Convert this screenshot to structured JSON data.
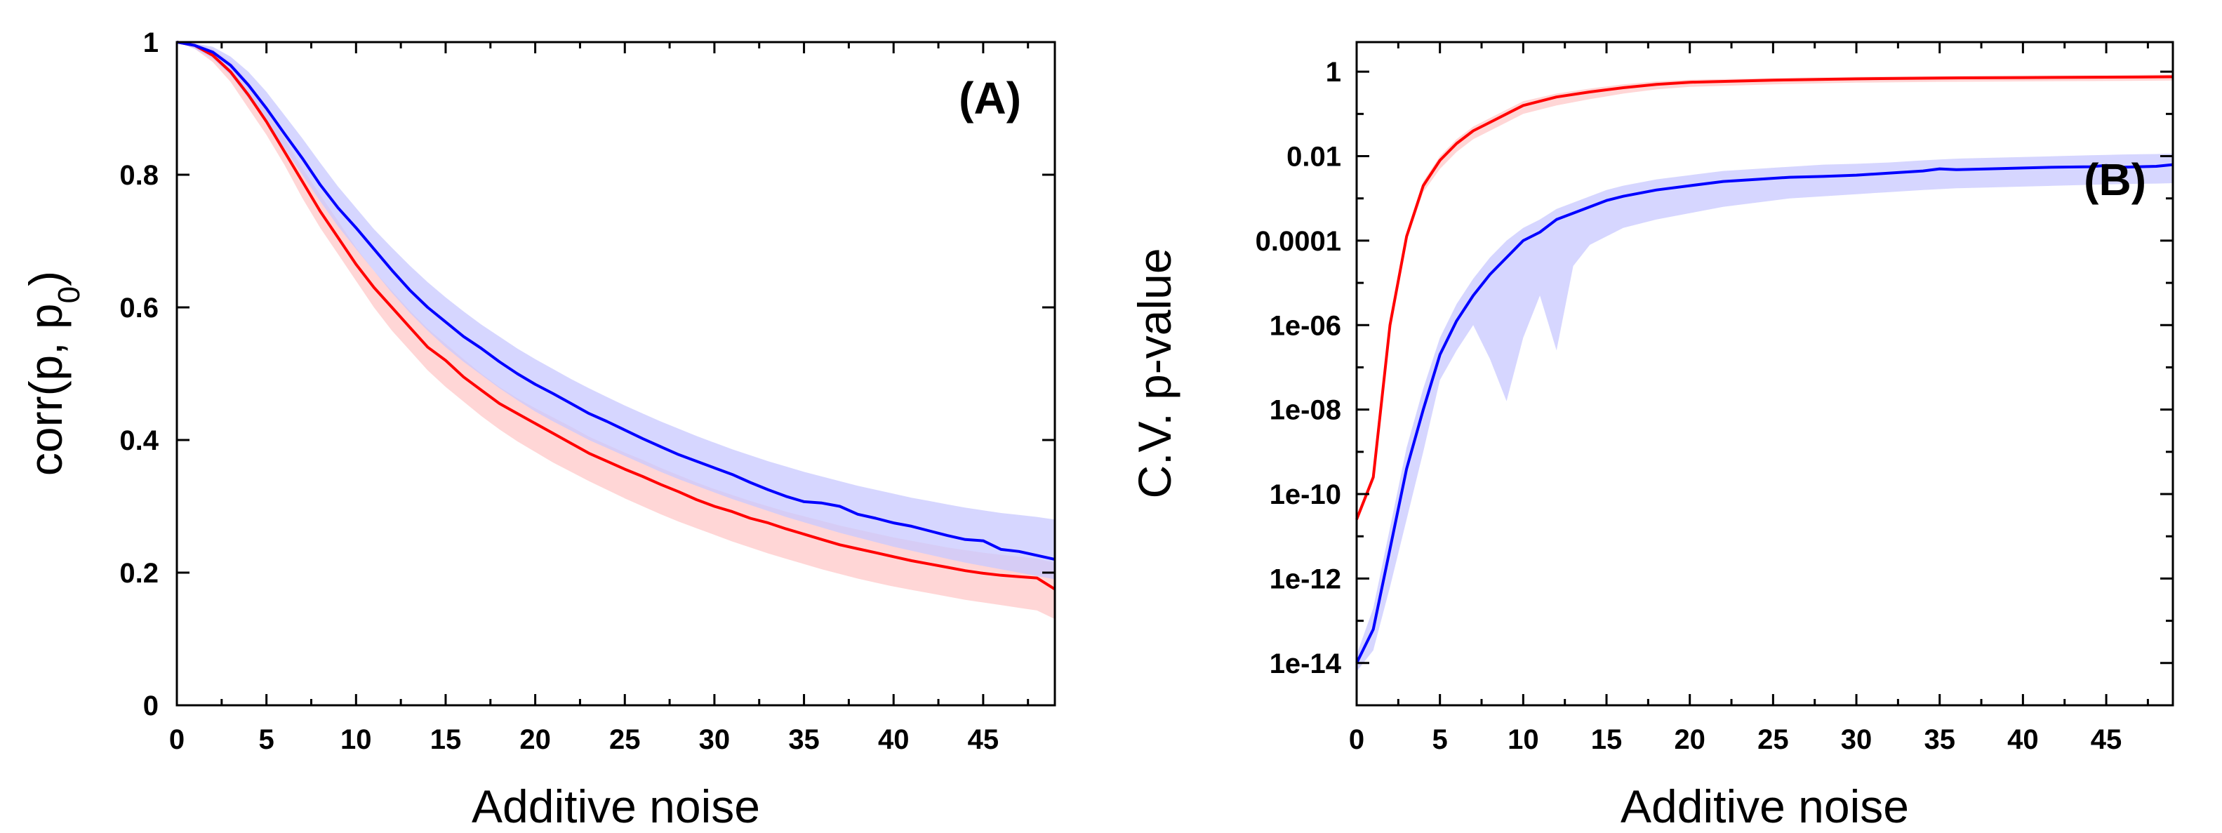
{
  "chart_data": [
    {
      "type": "line",
      "panel": "(A)",
      "xlabel": "Additive noise",
      "ylabel_main": "corr(p, p",
      "ylabel_sub": "0",
      "ylabel_close": ")",
      "xlim": [
        0,
        49
      ],
      "ylim": [
        0,
        1
      ],
      "x_ticks": [
        "0",
        "5",
        "10",
        "15",
        "20",
        "25",
        "30",
        "35",
        "40",
        "45"
      ],
      "y_ticks": [
        "0",
        "0.2",
        "0.4",
        "0.6",
        "0.8",
        "1"
      ],
      "series": [
        {
          "color": "#ff0000",
          "band_color": "#ffc8c8",
          "x": [
            0,
            1,
            2,
            3,
            4,
            5,
            6,
            7,
            8,
            9,
            10,
            11,
            12,
            13,
            14,
            15,
            16,
            17,
            18,
            19,
            20,
            21,
            22,
            23,
            24,
            25,
            26,
            27,
            28,
            29,
            30,
            31,
            32,
            33,
            34,
            35,
            36,
            37,
            38,
            39,
            40,
            41,
            42,
            43,
            44,
            45,
            46,
            47,
            48,
            49
          ],
          "y": [
            1.0,
            0.995,
            0.98,
            0.955,
            0.92,
            0.88,
            0.835,
            0.79,
            0.745,
            0.705,
            0.665,
            0.63,
            0.6,
            0.57,
            0.54,
            0.52,
            0.495,
            0.475,
            0.455,
            0.44,
            0.425,
            0.41,
            0.395,
            0.38,
            0.368,
            0.356,
            0.345,
            0.333,
            0.322,
            0.31,
            0.3,
            0.292,
            0.282,
            0.275,
            0.266,
            0.258,
            0.25,
            0.242,
            0.236,
            0.23,
            0.224,
            0.218,
            0.213,
            0.208,
            0.203,
            0.199,
            0.196,
            0.194,
            0.192,
            0.175
          ],
          "lower": [
            1.0,
            0.99,
            0.97,
            0.94,
            0.9,
            0.86,
            0.815,
            0.765,
            0.72,
            0.68,
            0.64,
            0.6,
            0.565,
            0.535,
            0.505,
            0.48,
            0.458,
            0.436,
            0.416,
            0.398,
            0.382,
            0.366,
            0.352,
            0.338,
            0.325,
            0.312,
            0.3,
            0.288,
            0.277,
            0.267,
            0.257,
            0.247,
            0.238,
            0.229,
            0.221,
            0.213,
            0.205,
            0.198,
            0.191,
            0.185,
            0.179,
            0.174,
            0.169,
            0.164,
            0.159,
            0.155,
            0.151,
            0.147,
            0.143,
            0.13
          ],
          "upper": [
            1.0,
            0.998,
            0.99,
            0.97,
            0.94,
            0.9,
            0.855,
            0.81,
            0.77,
            0.73,
            0.69,
            0.655,
            0.625,
            0.595,
            0.568,
            0.545,
            0.522,
            0.5,
            0.48,
            0.463,
            0.448,
            0.434,
            0.42,
            0.405,
            0.393,
            0.381,
            0.37,
            0.358,
            0.347,
            0.336,
            0.326,
            0.317,
            0.308,
            0.3,
            0.292,
            0.285,
            0.278,
            0.271,
            0.265,
            0.259,
            0.253,
            0.248,
            0.243,
            0.238,
            0.234,
            0.23,
            0.227,
            0.224,
            0.221,
            0.215
          ]
        },
        {
          "color": "#0000ff",
          "band_color": "#c8c8ff",
          "x": [
            0,
            1,
            2,
            3,
            4,
            5,
            6,
            7,
            8,
            9,
            10,
            11,
            12,
            13,
            14,
            15,
            16,
            17,
            18,
            19,
            20,
            21,
            22,
            23,
            24,
            25,
            26,
            27,
            28,
            29,
            30,
            31,
            32,
            33,
            34,
            35,
            36,
            37,
            38,
            39,
            40,
            41,
            42,
            43,
            44,
            45,
            46,
            47,
            48,
            49
          ],
          "y": [
            1.0,
            0.995,
            0.985,
            0.965,
            0.935,
            0.9,
            0.862,
            0.825,
            0.785,
            0.75,
            0.72,
            0.688,
            0.656,
            0.626,
            0.6,
            0.578,
            0.556,
            0.538,
            0.518,
            0.5,
            0.484,
            0.47,
            0.455,
            0.44,
            0.428,
            0.415,
            0.402,
            0.39,
            0.378,
            0.368,
            0.358,
            0.348,
            0.336,
            0.325,
            0.315,
            0.307,
            0.305,
            0.3,
            0.288,
            0.282,
            0.275,
            0.27,
            0.263,
            0.256,
            0.25,
            0.248,
            0.235,
            0.232,
            0.226,
            0.22
          ],
          "lower": [
            1.0,
            0.99,
            0.975,
            0.95,
            0.915,
            0.88,
            0.84,
            0.8,
            0.76,
            0.722,
            0.688,
            0.655,
            0.622,
            0.592,
            0.565,
            0.54,
            0.518,
            0.498,
            0.478,
            0.46,
            0.443,
            0.428,
            0.414,
            0.4,
            0.388,
            0.376,
            0.364,
            0.352,
            0.341,
            0.331,
            0.321,
            0.311,
            0.302,
            0.293,
            0.284,
            0.276,
            0.268,
            0.26,
            0.253,
            0.246,
            0.239,
            0.233,
            0.227,
            0.221,
            0.215,
            0.21,
            0.205,
            0.2,
            0.195,
            0.19
          ],
          "upper": [
            1.0,
            0.998,
            0.993,
            0.978,
            0.955,
            0.925,
            0.89,
            0.855,
            0.818,
            0.782,
            0.75,
            0.718,
            0.69,
            0.663,
            0.638,
            0.615,
            0.594,
            0.574,
            0.556,
            0.538,
            0.522,
            0.507,
            0.492,
            0.478,
            0.465,
            0.452,
            0.44,
            0.428,
            0.417,
            0.406,
            0.396,
            0.386,
            0.377,
            0.368,
            0.36,
            0.352,
            0.345,
            0.338,
            0.331,
            0.325,
            0.319,
            0.313,
            0.308,
            0.303,
            0.298,
            0.294,
            0.29,
            0.287,
            0.284,
            0.28
          ]
        }
      ]
    },
    {
      "type": "line",
      "panel": "(B)",
      "xlabel": "Additive noise",
      "ylabel": "C.V. p-value",
      "y_scale": "log",
      "xlim": [
        0,
        49
      ],
      "ylim": [
        -15,
        0.7
      ],
      "x_ticks": [
        "0",
        "5",
        "10",
        "15",
        "20",
        "25",
        "30",
        "35",
        "40",
        "45"
      ],
      "y_ticks": [
        {
          "label": "1",
          "log10": 0
        },
        {
          "label": "0.01",
          "log10": -2
        },
        {
          "label": "0.0001",
          "log10": -4
        },
        {
          "label": "1e-06",
          "log10": -6
        },
        {
          "label": "1e-08",
          "log10": -8
        },
        {
          "label": "1e-10",
          "log10": -10
        },
        {
          "label": "1e-12",
          "log10": -12
        },
        {
          "label": "1e-14",
          "log10": -14
        }
      ],
      "series": [
        {
          "color": "#ff0000",
          "band_color": "#ffc8c8",
          "x": [
            0,
            1,
            2,
            3,
            4,
            5,
            6,
            7,
            8,
            9,
            10,
            12,
            14,
            16,
            18,
            20,
            25,
            30,
            35,
            40,
            45,
            49
          ],
          "log10_y": [
            -10.6,
            -9.6,
            -6.0,
            -3.9,
            -2.7,
            -2.1,
            -1.7,
            -1.4,
            -1.2,
            -1.0,
            -0.8,
            -0.6,
            -0.48,
            -0.38,
            -0.3,
            -0.25,
            -0.2,
            -0.17,
            -0.15,
            -0.14,
            -0.13,
            -0.12
          ],
          "log10_lower": [
            -10.6,
            -9.7,
            -6.2,
            -4.0,
            -2.85,
            -2.3,
            -1.9,
            -1.6,
            -1.4,
            -1.2,
            -1.0,
            -0.8,
            -0.65,
            -0.52,
            -0.42,
            -0.36,
            -0.3,
            -0.26,
            -0.24,
            -0.23,
            -0.22,
            -0.21
          ],
          "log10_upper": [
            -10.5,
            -9.5,
            -5.9,
            -3.8,
            -2.6,
            -2.0,
            -1.6,
            -1.3,
            -1.1,
            -0.9,
            -0.7,
            -0.52,
            -0.4,
            -0.3,
            -0.23,
            -0.19,
            -0.15,
            -0.12,
            -0.1,
            -0.09,
            -0.08,
            -0.07
          ]
        },
        {
          "color": "#0000ff",
          "band_color": "#c8c8ff",
          "x": [
            0,
            1,
            2,
            3,
            4,
            5,
            6,
            7,
            8,
            9,
            10,
            11,
            12,
            13,
            14,
            15,
            16,
            18,
            20,
            22,
            24,
            26,
            28,
            30,
            32,
            34,
            35,
            36,
            38,
            40,
            42,
            44,
            45,
            46,
            48,
            49
          ],
          "log10_y": [
            -14.0,
            -13.2,
            -11.3,
            -9.4,
            -8.0,
            -6.7,
            -5.9,
            -5.3,
            -4.8,
            -4.4,
            -4.0,
            -3.8,
            -3.5,
            -3.35,
            -3.2,
            -3.05,
            -2.95,
            -2.8,
            -2.7,
            -2.6,
            -2.55,
            -2.5,
            -2.48,
            -2.45,
            -2.4,
            -2.35,
            -2.3,
            -2.32,
            -2.3,
            -2.28,
            -2.26,
            -2.25,
            -2.22,
            -2.26,
            -2.24,
            -2.2
          ],
          "log10_lower": [
            -14.2,
            -13.7,
            -12.2,
            -10.6,
            -9.0,
            -7.3,
            -6.6,
            -6.0,
            -6.8,
            -7.8,
            -6.3,
            -5.3,
            -6.6,
            -4.6,
            -4.1,
            -3.9,
            -3.7,
            -3.5,
            -3.35,
            -3.2,
            -3.1,
            -3.0,
            -2.95,
            -2.9,
            -2.85,
            -2.8,
            -2.78,
            -2.76,
            -2.74,
            -2.72,
            -2.7,
            -2.68,
            -2.67,
            -2.66,
            -2.65,
            -2.64
          ],
          "log10_upper": [
            -13.8,
            -12.7,
            -10.8,
            -8.9,
            -7.5,
            -6.3,
            -5.5,
            -4.9,
            -4.4,
            -4.0,
            -3.7,
            -3.5,
            -3.25,
            -3.1,
            -2.95,
            -2.8,
            -2.7,
            -2.55,
            -2.45,
            -2.35,
            -2.3,
            -2.25,
            -2.2,
            -2.18,
            -2.15,
            -2.1,
            -2.08,
            -2.06,
            -2.04,
            -2.02,
            -2.0,
            -1.98,
            -1.97,
            -1.96,
            -1.95,
            -1.94
          ]
        }
      ]
    }
  ]
}
